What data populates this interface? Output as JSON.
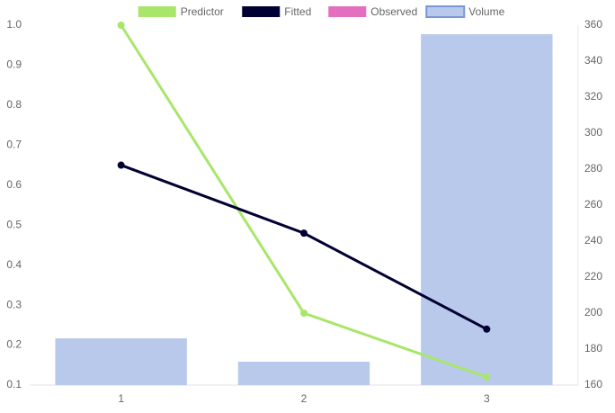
{
  "chart_data": {
    "type": "line",
    "categories": [
      "1",
      "2",
      "3"
    ],
    "series": [
      {
        "name": "Predictor",
        "color": "#a8e66a",
        "values": [
          1.0,
          0.28,
          0.12
        ]
      },
      {
        "name": "Fitted",
        "color": "#000033",
        "values": [
          0.65,
          0.48,
          0.24
        ]
      },
      {
        "name": "Observed",
        "color": "#e46fbf",
        "values": [
          null,
          null,
          null
        ]
      },
      {
        "name": "Volume",
        "type": "bar",
        "axis": "y2",
        "color": "#b9c9eb",
        "border": "#7a96d9",
        "values": [
          186,
          173,
          355
        ]
      }
    ],
    "ylim": [
      0.1,
      1.0
    ],
    "yticks": [
      0.1,
      0.2,
      0.3,
      0.4,
      0.5,
      0.6,
      0.7,
      0.8,
      0.9,
      {
        "value": 1.0,
        "label": "1.0"
      }
    ],
    "y2lim": [
      160,
      360
    ],
    "y2ticks": [
      160,
      180,
      200,
      220,
      240,
      260,
      280,
      300,
      320,
      340,
      360
    ],
    "grid": false,
    "legend": "top"
  }
}
